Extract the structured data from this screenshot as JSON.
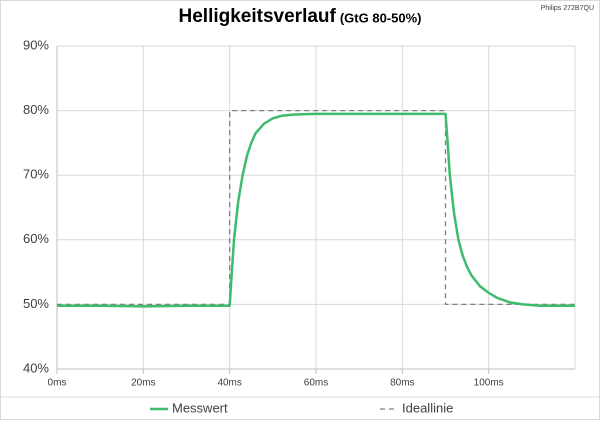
{
  "chart_data": {
    "type": "line",
    "title": "Helligkeitsverlauf",
    "subtitle": "(GtG 80-50%)",
    "annotation": "Philips 272B7QU",
    "xlim": [
      0,
      120
    ],
    "xticks": [
      {
        "value": 0,
        "label": "0ms"
      },
      {
        "value": 20,
        "label": "20ms"
      },
      {
        "value": 40,
        "label": "40ms"
      },
      {
        "value": 60,
        "label": "60ms"
      },
      {
        "value": 80,
        "label": "80ms"
      },
      {
        "value": 100,
        "label": "100ms"
      }
    ],
    "ylim": [
      40,
      90
    ],
    "yticks": [
      {
        "value": 40,
        "label": "40%"
      },
      {
        "value": 50,
        "label": "50%"
      },
      {
        "value": 60,
        "label": "60%"
      },
      {
        "value": 70,
        "label": "70%"
      },
      {
        "value": 80,
        "label": "80%"
      },
      {
        "value": 90,
        "label": "90%"
      }
    ],
    "grid": true,
    "legend": "bottom",
    "series": [
      {
        "name": "Messwert",
        "color": "#3cbc6c",
        "dash": false,
        "x": [
          0,
          10,
          20,
          30,
          40,
          40.5,
          41,
          42,
          43,
          44,
          45,
          46,
          48,
          50,
          52,
          55,
          60,
          70,
          80,
          90,
          90.5,
          91,
          92,
          93,
          94,
          95,
          96,
          98,
          100,
          102,
          105,
          108,
          112,
          120
        ],
        "values": [
          49.8,
          49.8,
          49.7,
          49.8,
          49.8,
          55,
          60,
          66,
          70,
          73,
          75,
          76.5,
          78,
          78.8,
          79.2,
          79.4,
          79.5,
          79.5,
          79.5,
          79.5,
          75,
          70,
          64,
          60,
          57.5,
          55.8,
          54.5,
          52.8,
          51.8,
          51,
          50.3,
          50,
          49.8,
          49.8
        ]
      },
      {
        "name": "Ideallinie",
        "color": "#7f7f7f",
        "dash": true,
        "x": [
          0,
          40,
          40,
          90,
          90,
          120
        ],
        "values": [
          50,
          50,
          80,
          80,
          50,
          50
        ]
      }
    ]
  }
}
